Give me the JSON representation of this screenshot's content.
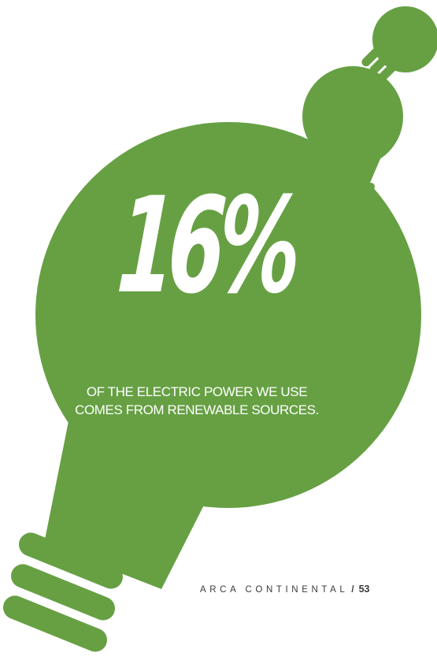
{
  "stat": {
    "value": "16%",
    "caption_line1": "OF THE ELECTRIC POWER WE USE",
    "caption_line2": "COMES FROM RENEWABLE SOURCES."
  },
  "footer": {
    "company": "ARCA CONTINENTAL",
    "separator": "/",
    "page_number": "53"
  },
  "colors": {
    "bulb_green": "#66A043",
    "text_on_green": "#ffffff",
    "footer_text": "#3a3a3a"
  }
}
